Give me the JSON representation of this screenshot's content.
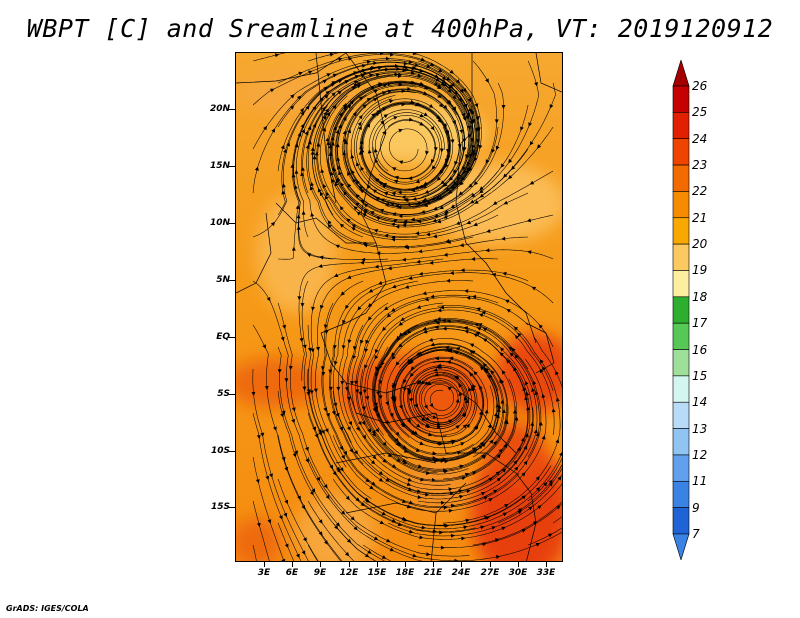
{
  "title": "WBPT [C] and Sreamline at 400hPa, VT: 2019120912",
  "credit": "GrADS: IGES/COLA",
  "map": {
    "lat_labels": [
      "20N",
      "15N",
      "10N",
      "5N",
      "EQ",
      "5S",
      "10S",
      "15S"
    ],
    "lon_labels": [
      "3E",
      "6E",
      "9E",
      "12E",
      "15E",
      "18E",
      "21E",
      "24E",
      "27E",
      "30E",
      "33E"
    ],
    "field": "wet-bulb potential temperature",
    "overlay": "streamlines",
    "pressure_level": "400hPa",
    "features": [
      {
        "type": "anticyclonic-circulation",
        "lat": 17,
        "lon": 17
      },
      {
        "type": "cyclonic-circulation",
        "lat": -5,
        "lon": 21
      }
    ]
  },
  "colorbar": {
    "labels": [
      "26",
      "25",
      "24",
      "23",
      "22",
      "21",
      "20",
      "19",
      "18",
      "17",
      "16",
      "15",
      "14",
      "13",
      "12",
      "11",
      "9",
      "7"
    ],
    "colors": [
      "#a50000",
      "#c40000",
      "#e02000",
      "#ee4400",
      "#f26a00",
      "#f78b00",
      "#f8a800",
      "#fcc860",
      "#fdeea0",
      "#2eae2e",
      "#56c856",
      "#9edf9a",
      "#d4f6f0",
      "#b8dcf8",
      "#90c4f2",
      "#60a0ec",
      "#3a82e4",
      "#1f63d6",
      "#3a82e4"
    ]
  }
}
